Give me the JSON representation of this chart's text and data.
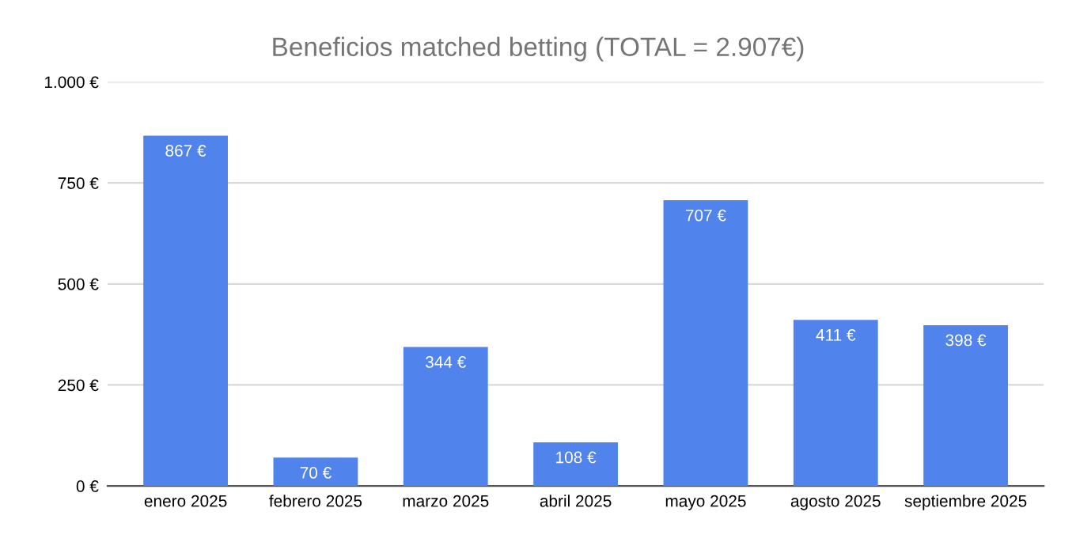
{
  "chart_data": {
    "type": "bar",
    "title": "Beneficios matched betting (TOTAL = 2.907€)",
    "categories": [
      "enero 2025",
      "febrero 2025",
      "marzo 2025",
      "abril 2025",
      "mayo 2025",
      "agosto 2025",
      "septiembre 2025"
    ],
    "values": [
      867,
      70,
      344,
      108,
      707,
      411,
      398
    ],
    "value_labels": [
      "867 €",
      "70 €",
      "344 €",
      "108 €",
      "707 €",
      "411 €",
      "398 €"
    ],
    "color": "#5083ec",
    "ylim": [
      0,
      1000
    ],
    "yticks": [
      {
        "value": 0,
        "label": "0 €"
      },
      {
        "value": 250,
        "label": "250 €"
      },
      {
        "value": 500,
        "label": "500 €"
      },
      {
        "value": 750,
        "label": "750 €"
      },
      {
        "value": 1000,
        "label": "1.000 €"
      }
    ],
    "grid": "y",
    "legend": false
  }
}
